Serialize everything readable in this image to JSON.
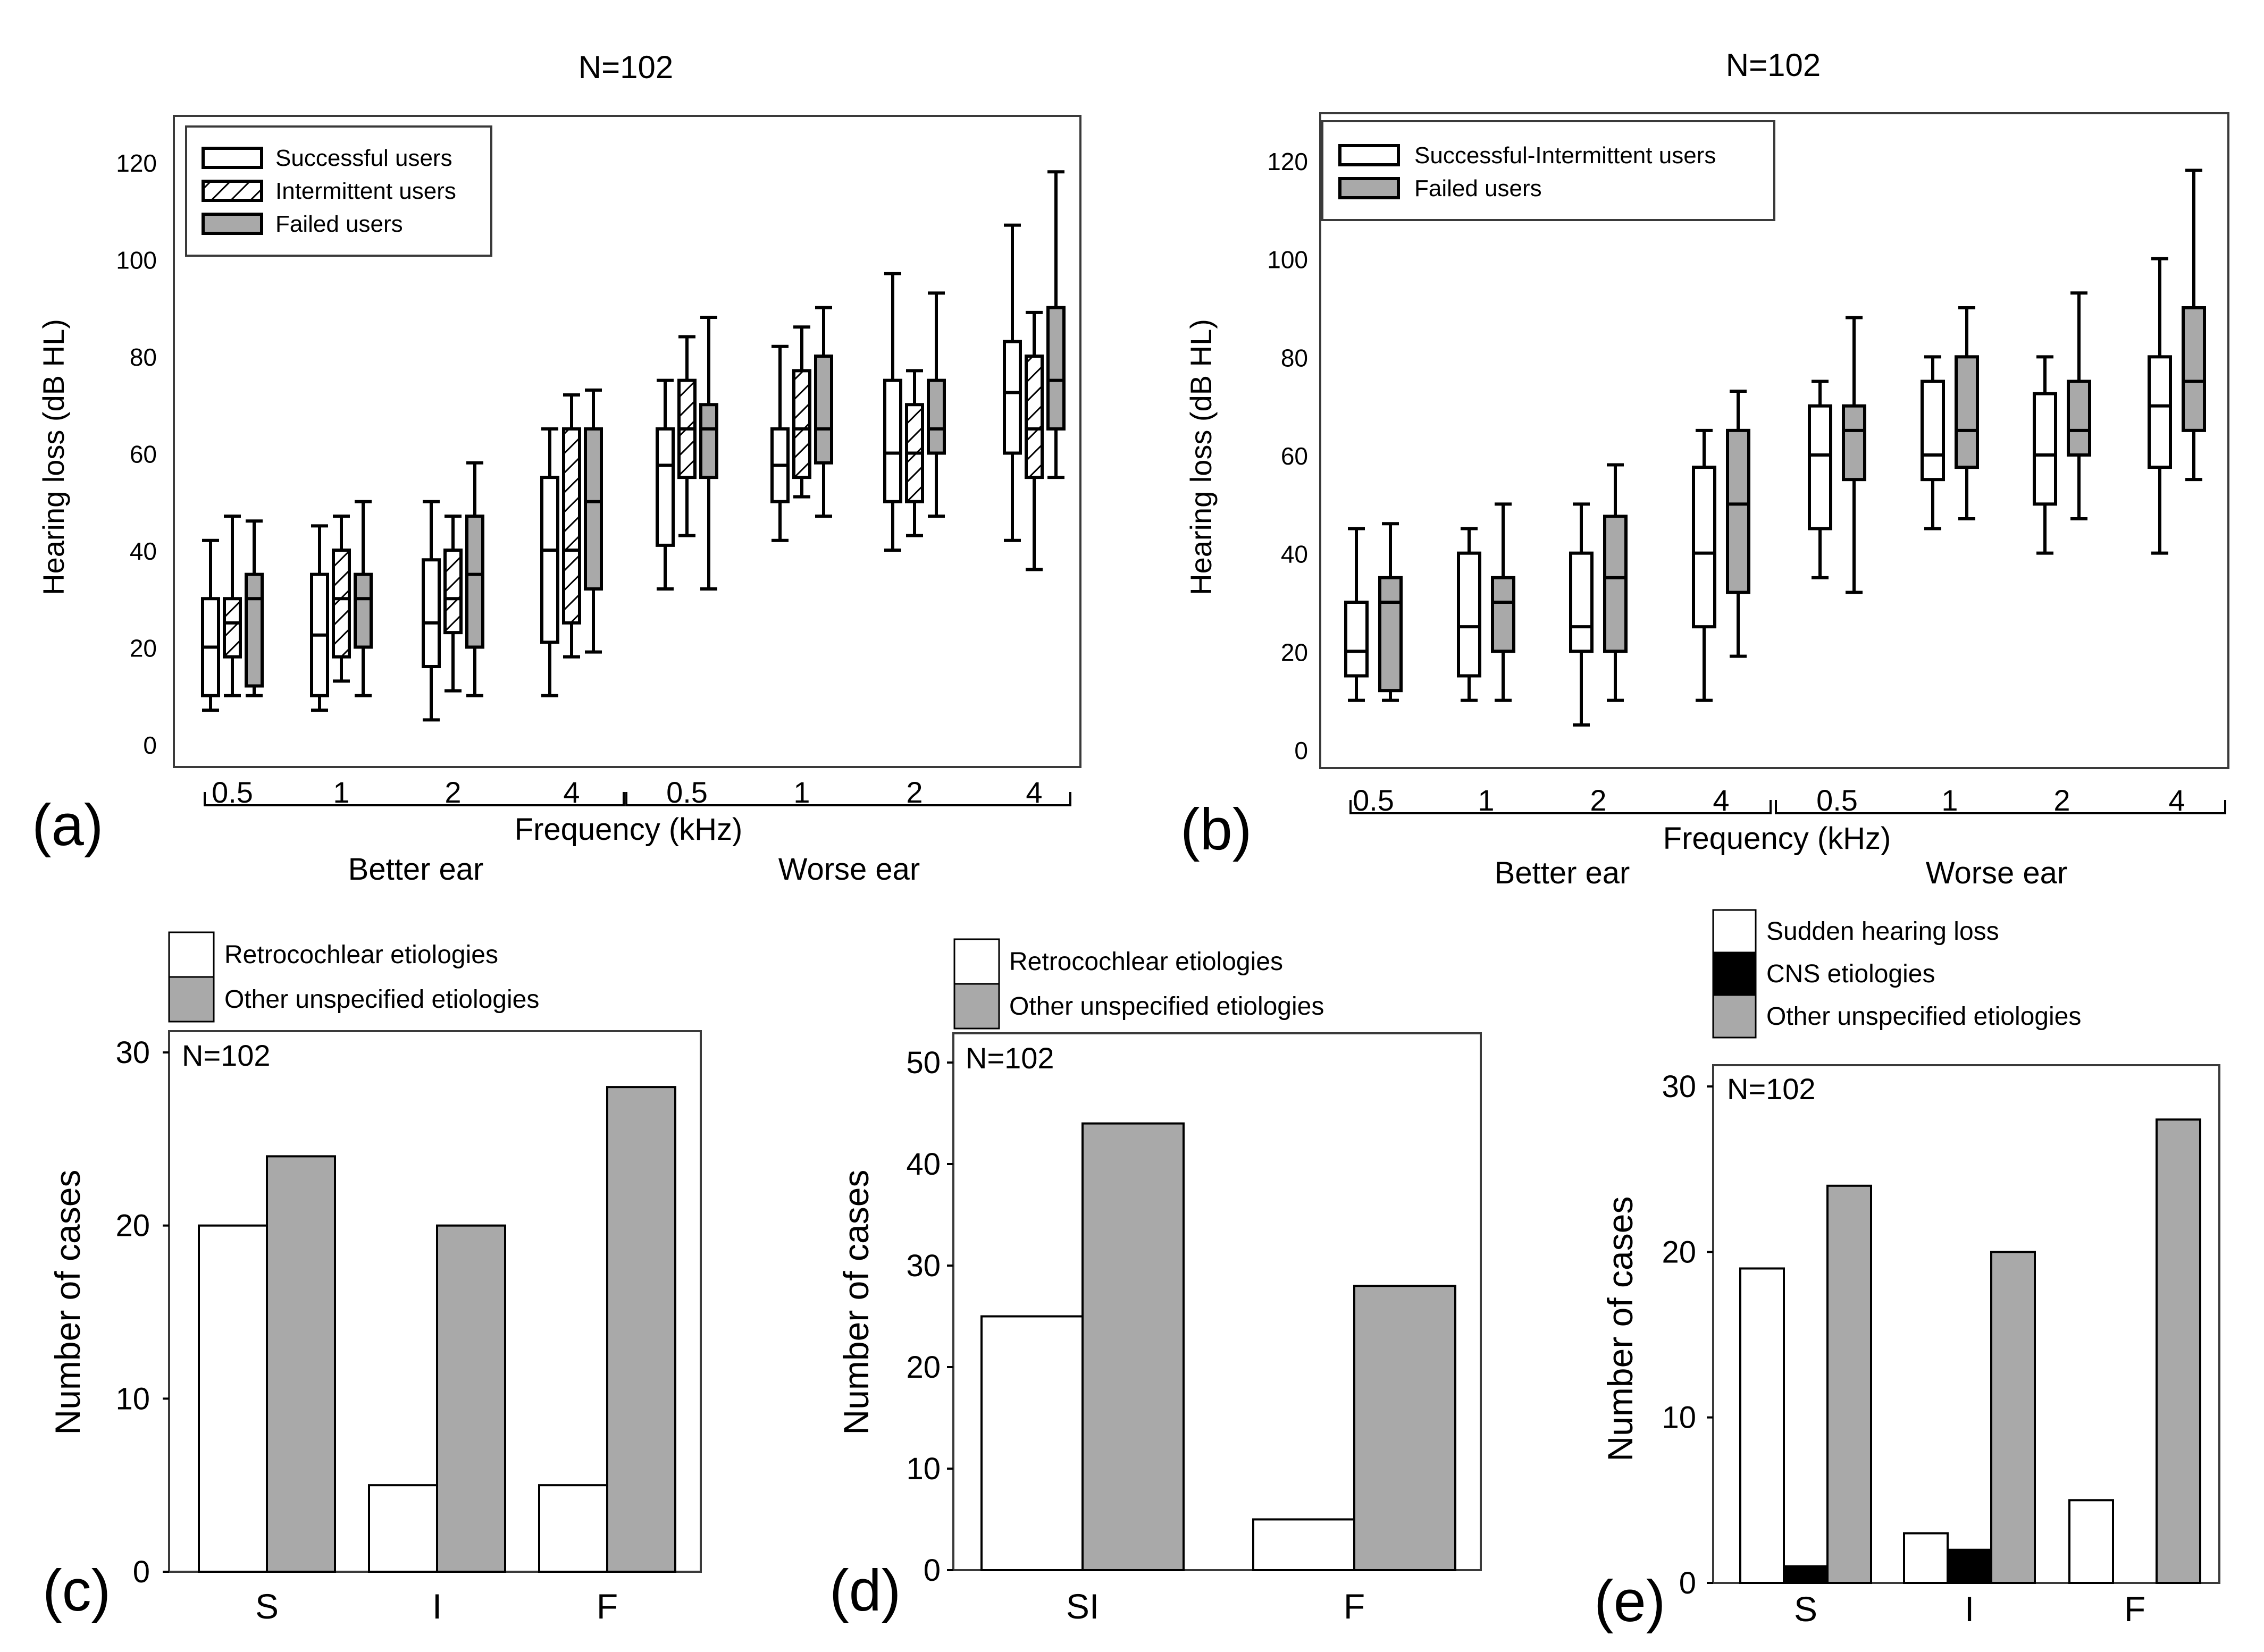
{
  "colors": {
    "white": "#ffffff",
    "gray": "#a9a9a9",
    "black": "#000000",
    "hatch": "#000000"
  },
  "chart_data": [
    {
      "type": "box",
      "id": "a",
      "panel_label": "(a)",
      "title": "N=102",
      "ylabel": "Hearing loss (dB HL)",
      "xlabel": "Frequency (kHz)",
      "ylim": [
        -5,
        130
      ],
      "yticks": [
        "0",
        "20",
        "40",
        "60",
        "80",
        "100",
        "120"
      ],
      "groups": [
        {
          "label": "Better ear",
          "categories": [
            "0.5",
            "1",
            "2",
            "4"
          ]
        },
        {
          "label": "Worse ear",
          "categories": [
            "0.5",
            "1",
            "2",
            "4"
          ]
        }
      ],
      "legend": [
        {
          "label": "Successful users",
          "fill": "white"
        },
        {
          "label": "Intermittent users",
          "fill": "hatch"
        },
        {
          "label": "Failed users",
          "fill": "gray"
        }
      ],
      "series": [
        {
          "name": "Successful users",
          "fill": "white",
          "boxes": [
            [
              7,
              10,
              20,
              30,
              42
            ],
            [
              7,
              10,
              22.5,
              35,
              45
            ],
            [
              5,
              16,
              25,
              38,
              50
            ],
            [
              10,
              21,
              40,
              55,
              65
            ],
            [
              32,
              41,
              57.5,
              65,
              75
            ],
            [
              42,
              50,
              57.5,
              65,
              82
            ],
            [
              40,
              50,
              60,
              75,
              97
            ],
            [
              42,
              60,
              72.5,
              83,
              107
            ]
          ]
        },
        {
          "name": "Intermittent users",
          "fill": "hatch",
          "boxes": [
            [
              10,
              18,
              25,
              30,
              47
            ],
            [
              13,
              18,
              30,
              40,
              47
            ],
            [
              11,
              23,
              30,
              40,
              47
            ],
            [
              18,
              25,
              40,
              65,
              72
            ],
            [
              43,
              55,
              65,
              75,
              84
            ],
            [
              51,
              55,
              65,
              77,
              86
            ],
            [
              43,
              50,
              60,
              70,
              77
            ],
            [
              36,
              55,
              65,
              80,
              89
            ]
          ]
        },
        {
          "name": "Failed users",
          "fill": "gray",
          "boxes": [
            [
              10,
              12,
              30,
              35,
              46
            ],
            [
              10,
              20,
              30,
              35,
              50
            ],
            [
              10,
              20,
              35,
              47,
              58
            ],
            [
              19,
              32,
              50,
              65,
              73
            ],
            [
              32,
              55,
              65,
              70,
              88
            ],
            [
              47,
              58,
              65,
              80,
              90
            ],
            [
              47,
              60,
              65,
              75,
              93
            ],
            [
              55,
              65,
              75,
              90,
              118
            ]
          ]
        }
      ]
    },
    {
      "type": "box",
      "id": "b",
      "panel_label": "(b)",
      "title": "N=102",
      "ylabel": "Hearing loss (dB HL)",
      "xlabel": "Frequency (kHz)",
      "ylim": [
        -5,
        130
      ],
      "yticks": [
        "0",
        "20",
        "40",
        "60",
        "80",
        "100",
        "120"
      ],
      "groups": [
        {
          "label": "Better ear",
          "categories": [
            "0.5",
            "1",
            "2",
            "4"
          ]
        },
        {
          "label": "Worse ear",
          "categories": [
            "0.5",
            "1",
            "2",
            "4"
          ]
        }
      ],
      "legend": [
        {
          "label": "Successful-Intermittent users",
          "fill": "white"
        },
        {
          "label": "Failed users",
          "fill": "gray"
        }
      ],
      "series": [
        {
          "name": "Successful-Intermittent users",
          "fill": "white",
          "boxes": [
            [
              10,
              15,
              20,
              30,
              45
            ],
            [
              10,
              15,
              25,
              40,
              45
            ],
            [
              5,
              20,
              25,
              40,
              50
            ],
            [
              10,
              25,
              40,
              57.5,
              65
            ],
            [
              35,
              45,
              60,
              70,
              75
            ],
            [
              45,
              55,
              60,
              75,
              80
            ],
            [
              40,
              50,
              60,
              72.5,
              80
            ],
            [
              40,
              57.5,
              70,
              80,
              100
            ]
          ]
        },
        {
          "name": "Failed users",
          "fill": "gray",
          "boxes": [
            [
              10,
              12,
              30,
              35,
              46
            ],
            [
              10,
              20,
              30,
              35,
              50
            ],
            [
              10,
              20,
              35,
              47.5,
              58
            ],
            [
              19,
              32,
              50,
              65,
              73
            ],
            [
              32,
              55,
              65,
              70,
              88
            ],
            [
              47,
              57.5,
              65,
              80,
              90
            ],
            [
              47,
              60,
              65,
              75,
              93
            ],
            [
              55,
              65,
              75,
              90,
              118
            ]
          ]
        }
      ]
    },
    {
      "type": "bar",
      "id": "c",
      "panel_label": "(c)",
      "annotation": "N=102",
      "ylabel": "Number of cases",
      "ylim": [
        0,
        32
      ],
      "yticks": [
        "0",
        "10",
        "20",
        "30"
      ],
      "categories": [
        "S",
        "I",
        "F"
      ],
      "legend": [
        {
          "label": "Retrocochlear etiologies",
          "fill": "white"
        },
        {
          "label": "Other unspecified etiologies",
          "fill": "gray"
        }
      ],
      "series": [
        {
          "name": "Retrocochlear etiologies",
          "fill": "white",
          "values": [
            20,
            5,
            5
          ]
        },
        {
          "name": "Other unspecified etiologies",
          "fill": "gray",
          "values": [
            24,
            20,
            28
          ]
        }
      ]
    },
    {
      "type": "bar",
      "id": "d",
      "panel_label": "(d)",
      "annotation": "N=102",
      "ylabel": "Number of cases",
      "ylim": [
        0,
        52
      ],
      "yticks": [
        "0",
        "10",
        "20",
        "30",
        "40",
        "50"
      ],
      "categories": [
        "SI",
        "F"
      ],
      "legend": [
        {
          "label": "Retrocochlear etiologies",
          "fill": "white"
        },
        {
          "label": "Other unspecified etiologies",
          "fill": "gray"
        }
      ],
      "series": [
        {
          "name": "Retrocochlear etiologies",
          "fill": "white",
          "values": [
            25,
            5
          ]
        },
        {
          "name": "Other unspecified etiologies",
          "fill": "gray",
          "values": [
            44,
            28
          ]
        }
      ]
    },
    {
      "type": "bar",
      "id": "e",
      "panel_label": "(e)",
      "annotation": "N=102",
      "ylabel": "Number of cases",
      "ylim": [
        0,
        32
      ],
      "yticks": [
        "0",
        "10",
        "20",
        "30"
      ],
      "categories": [
        "S",
        "I",
        "F"
      ],
      "legend": [
        {
          "label": "Sudden hearing loss",
          "fill": "white"
        },
        {
          "label": "CNS etiologies",
          "fill": "black"
        },
        {
          "label": "Other unspecified etiologies",
          "fill": "gray"
        }
      ],
      "series": [
        {
          "name": "Sudden hearing loss",
          "fill": "white",
          "values": [
            19,
            3,
            5
          ]
        },
        {
          "name": "CNS etiologies",
          "fill": "black",
          "values": [
            1,
            2,
            0
          ]
        },
        {
          "name": "Other unspecified etiologies",
          "fill": "gray",
          "values": [
            24,
            20,
            28
          ]
        }
      ]
    }
  ]
}
